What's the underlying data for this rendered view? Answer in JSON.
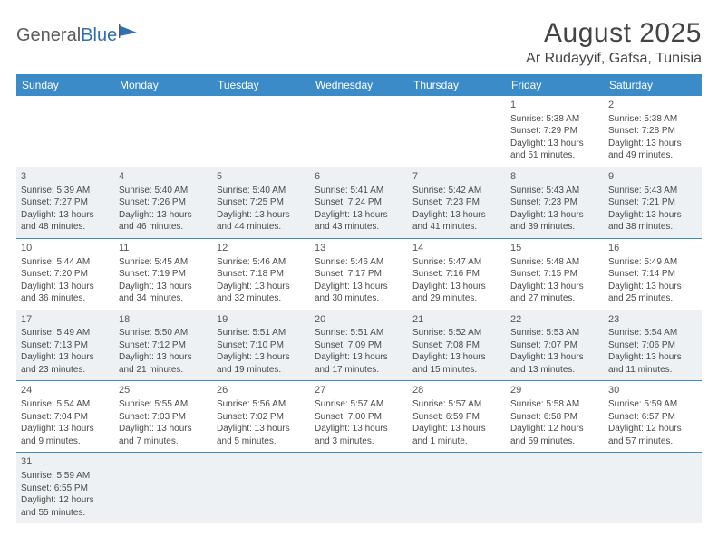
{
  "logo": {
    "part1": "General",
    "part2": "Blue"
  },
  "title": "August 2025",
  "location": "Ar Rudayyif, Gafsa, Tunisia",
  "colors": {
    "header_bg": "#3b8bc8",
    "header_fg": "#ffffff",
    "shade_bg": "#eef1f3",
    "rule": "#3b8bc8",
    "logo_accent": "#2f6fb3"
  },
  "day_headers": [
    "Sunday",
    "Monday",
    "Tuesday",
    "Wednesday",
    "Thursday",
    "Friday",
    "Saturday"
  ],
  "weeks": [
    {
      "shade": false,
      "days": [
        null,
        null,
        null,
        null,
        null,
        {
          "n": "1",
          "sr": "Sunrise: 5:38 AM",
          "ss": "Sunset: 7:29 PM",
          "d1": "Daylight: 13 hours",
          "d2": "and 51 minutes."
        },
        {
          "n": "2",
          "sr": "Sunrise: 5:38 AM",
          "ss": "Sunset: 7:28 PM",
          "d1": "Daylight: 13 hours",
          "d2": "and 49 minutes."
        }
      ]
    },
    {
      "shade": true,
      "days": [
        {
          "n": "3",
          "sr": "Sunrise: 5:39 AM",
          "ss": "Sunset: 7:27 PM",
          "d1": "Daylight: 13 hours",
          "d2": "and 48 minutes."
        },
        {
          "n": "4",
          "sr": "Sunrise: 5:40 AM",
          "ss": "Sunset: 7:26 PM",
          "d1": "Daylight: 13 hours",
          "d2": "and 46 minutes."
        },
        {
          "n": "5",
          "sr": "Sunrise: 5:40 AM",
          "ss": "Sunset: 7:25 PM",
          "d1": "Daylight: 13 hours",
          "d2": "and 44 minutes."
        },
        {
          "n": "6",
          "sr": "Sunrise: 5:41 AM",
          "ss": "Sunset: 7:24 PM",
          "d1": "Daylight: 13 hours",
          "d2": "and 43 minutes."
        },
        {
          "n": "7",
          "sr": "Sunrise: 5:42 AM",
          "ss": "Sunset: 7:23 PM",
          "d1": "Daylight: 13 hours",
          "d2": "and 41 minutes."
        },
        {
          "n": "8",
          "sr": "Sunrise: 5:43 AM",
          "ss": "Sunset: 7:23 PM",
          "d1": "Daylight: 13 hours",
          "d2": "and 39 minutes."
        },
        {
          "n": "9",
          "sr": "Sunrise: 5:43 AM",
          "ss": "Sunset: 7:21 PM",
          "d1": "Daylight: 13 hours",
          "d2": "and 38 minutes."
        }
      ]
    },
    {
      "shade": false,
      "days": [
        {
          "n": "10",
          "sr": "Sunrise: 5:44 AM",
          "ss": "Sunset: 7:20 PM",
          "d1": "Daylight: 13 hours",
          "d2": "and 36 minutes."
        },
        {
          "n": "11",
          "sr": "Sunrise: 5:45 AM",
          "ss": "Sunset: 7:19 PM",
          "d1": "Daylight: 13 hours",
          "d2": "and 34 minutes."
        },
        {
          "n": "12",
          "sr": "Sunrise: 5:46 AM",
          "ss": "Sunset: 7:18 PM",
          "d1": "Daylight: 13 hours",
          "d2": "and 32 minutes."
        },
        {
          "n": "13",
          "sr": "Sunrise: 5:46 AM",
          "ss": "Sunset: 7:17 PM",
          "d1": "Daylight: 13 hours",
          "d2": "and 30 minutes."
        },
        {
          "n": "14",
          "sr": "Sunrise: 5:47 AM",
          "ss": "Sunset: 7:16 PM",
          "d1": "Daylight: 13 hours",
          "d2": "and 29 minutes."
        },
        {
          "n": "15",
          "sr": "Sunrise: 5:48 AM",
          "ss": "Sunset: 7:15 PM",
          "d1": "Daylight: 13 hours",
          "d2": "and 27 minutes."
        },
        {
          "n": "16",
          "sr": "Sunrise: 5:49 AM",
          "ss": "Sunset: 7:14 PM",
          "d1": "Daylight: 13 hours",
          "d2": "and 25 minutes."
        }
      ]
    },
    {
      "shade": true,
      "days": [
        {
          "n": "17",
          "sr": "Sunrise: 5:49 AM",
          "ss": "Sunset: 7:13 PM",
          "d1": "Daylight: 13 hours",
          "d2": "and 23 minutes."
        },
        {
          "n": "18",
          "sr": "Sunrise: 5:50 AM",
          "ss": "Sunset: 7:12 PM",
          "d1": "Daylight: 13 hours",
          "d2": "and 21 minutes."
        },
        {
          "n": "19",
          "sr": "Sunrise: 5:51 AM",
          "ss": "Sunset: 7:10 PM",
          "d1": "Daylight: 13 hours",
          "d2": "and 19 minutes."
        },
        {
          "n": "20",
          "sr": "Sunrise: 5:51 AM",
          "ss": "Sunset: 7:09 PM",
          "d1": "Daylight: 13 hours",
          "d2": "and 17 minutes."
        },
        {
          "n": "21",
          "sr": "Sunrise: 5:52 AM",
          "ss": "Sunset: 7:08 PM",
          "d1": "Daylight: 13 hours",
          "d2": "and 15 minutes."
        },
        {
          "n": "22",
          "sr": "Sunrise: 5:53 AM",
          "ss": "Sunset: 7:07 PM",
          "d1": "Daylight: 13 hours",
          "d2": "and 13 minutes."
        },
        {
          "n": "23",
          "sr": "Sunrise: 5:54 AM",
          "ss": "Sunset: 7:06 PM",
          "d1": "Daylight: 13 hours",
          "d2": "and 11 minutes."
        }
      ]
    },
    {
      "shade": false,
      "days": [
        {
          "n": "24",
          "sr": "Sunrise: 5:54 AM",
          "ss": "Sunset: 7:04 PM",
          "d1": "Daylight: 13 hours",
          "d2": "and 9 minutes."
        },
        {
          "n": "25",
          "sr": "Sunrise: 5:55 AM",
          "ss": "Sunset: 7:03 PM",
          "d1": "Daylight: 13 hours",
          "d2": "and 7 minutes."
        },
        {
          "n": "26",
          "sr": "Sunrise: 5:56 AM",
          "ss": "Sunset: 7:02 PM",
          "d1": "Daylight: 13 hours",
          "d2": "and 5 minutes."
        },
        {
          "n": "27",
          "sr": "Sunrise: 5:57 AM",
          "ss": "Sunset: 7:00 PM",
          "d1": "Daylight: 13 hours",
          "d2": "and 3 minutes."
        },
        {
          "n": "28",
          "sr": "Sunrise: 5:57 AM",
          "ss": "Sunset: 6:59 PM",
          "d1": "Daylight: 13 hours",
          "d2": "and 1 minute."
        },
        {
          "n": "29",
          "sr": "Sunrise: 5:58 AM",
          "ss": "Sunset: 6:58 PM",
          "d1": "Daylight: 12 hours",
          "d2": "and 59 minutes."
        },
        {
          "n": "30",
          "sr": "Sunrise: 5:59 AM",
          "ss": "Sunset: 6:57 PM",
          "d1": "Daylight: 12 hours",
          "d2": "and 57 minutes."
        }
      ]
    },
    {
      "shade": true,
      "last": true,
      "days": [
        {
          "n": "31",
          "sr": "Sunrise: 5:59 AM",
          "ss": "Sunset: 6:55 PM",
          "d1": "Daylight: 12 hours",
          "d2": "and 55 minutes."
        },
        null,
        null,
        null,
        null,
        null,
        null
      ]
    }
  ]
}
